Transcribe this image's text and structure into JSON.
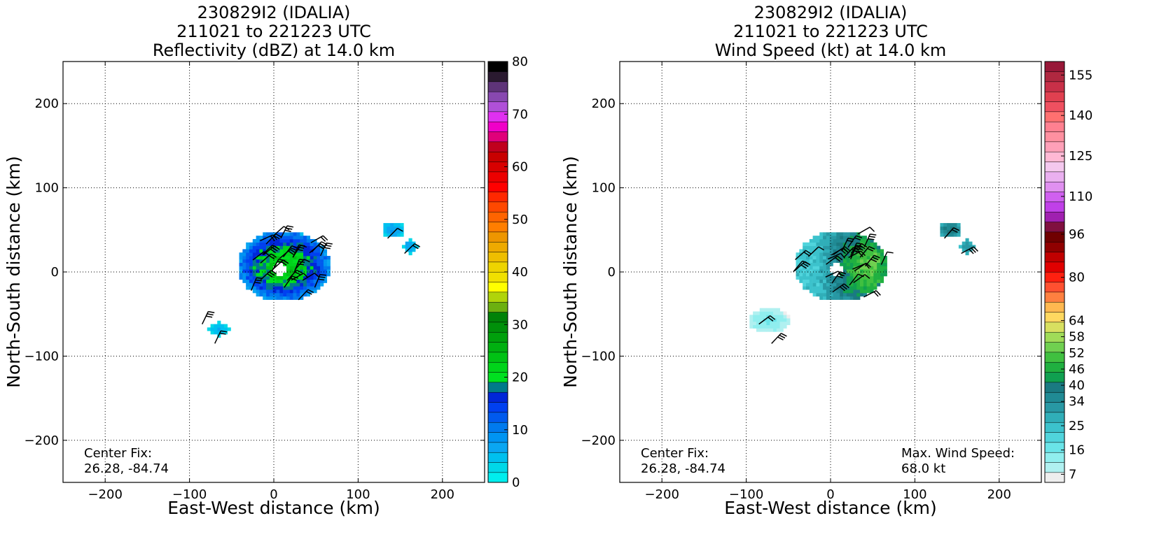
{
  "chart_data": [
    {
      "type": "heatmap",
      "title_lines": [
        "230829I2 (IDALIA)",
        "211021 to 221223 UTC",
        "Reflectivity (dBZ) at 14.0 km"
      ],
      "xlabel": "East-West distance (km)",
      "ylabel": "North-South distance (km)",
      "xlim": [
        -250,
        250
      ],
      "ylim": [
        -250,
        250
      ],
      "xticks": [
        -200,
        -100,
        0,
        100,
        200
      ],
      "yticks": [
        -200,
        -100,
        0,
        100,
        200
      ],
      "xtick_labels": [
        "−200",
        "−100",
        "0",
        "100",
        "200"
      ],
      "ytick_labels": [
        "−200",
        "−100",
        "0",
        "100",
        "200"
      ],
      "grid": true,
      "annotations": [
        {
          "lines": [
            "Center Fix:",
            "26.28, -84.74"
          ],
          "position": "bottom-left"
        }
      ],
      "colorbar": {
        "range": [
          0,
          80
        ],
        "ticks": [
          0,
          10,
          20,
          30,
          40,
          50,
          60,
          70,
          80
        ],
        "colors": [
          "#00eeee",
          "#00d8e8",
          "#00c0ef",
          "#0aa6f2",
          "#0094f2",
          "#007aee",
          "#005aee",
          "#0040f0",
          "#0026d8",
          "#007a8a",
          "#00e020",
          "#00d41a",
          "#00c214",
          "#00b010",
          "#00a00c",
          "#00900a",
          "#008208",
          "#6cb010",
          "#b0d40a",
          "#ffff00",
          "#f0e000",
          "#eed400",
          "#eebe00",
          "#eeaa00",
          "#ee9600",
          "#ff7e00",
          "#ff6400",
          "#ff4800",
          "#ff2800",
          "#ff0000",
          "#ec0000",
          "#d80000",
          "#c80000",
          "#c0001e",
          "#e0007a",
          "#f000c8",
          "#e030f0",
          "#b050d8",
          "#8848b0",
          "#5e3478",
          "#2a1a30",
          "#000000"
        ]
      },
      "data_note": "Reflectivity field (dBZ) mapped over storm-relative grid with wind barbs",
      "regions": [
        {
          "name": "core",
          "cx": 10,
          "cy": 5,
          "rx": 55,
          "ry": 42,
          "value_range": [
            5,
            25
          ]
        },
        {
          "name": "ne-fragment",
          "cx": 140,
          "cy": 48,
          "rx": 14,
          "ry": 10,
          "value_range": [
            2,
            8
          ]
        },
        {
          "name": "e-fragment",
          "cx": 160,
          "cy": 28,
          "rx": 8,
          "ry": 8,
          "value_range": [
            2,
            8
          ]
        },
        {
          "name": "sw-fragment",
          "cx": -67,
          "cy": -70,
          "rx": 12,
          "ry": 8,
          "value_range": [
            2,
            6
          ]
        }
      ]
    },
    {
      "type": "heatmap",
      "title_lines": [
        "230829I2 (IDALIA)",
        "211021 to 221223 UTC",
        "Wind Speed (kt) at 14.0 km"
      ],
      "xlabel": "East-West distance (km)",
      "ylabel": "North-South distance (km)",
      "xlim": [
        -250,
        250
      ],
      "ylim": [
        -250,
        250
      ],
      "xticks": [
        -200,
        -100,
        0,
        100,
        200
      ],
      "yticks": [
        -200,
        -100,
        0,
        100,
        200
      ],
      "xtick_labels": [
        "−200",
        "−100",
        "0",
        "100",
        "200"
      ],
      "ytick_labels": [
        "−200",
        "−100",
        "0",
        "100",
        "200"
      ],
      "grid": true,
      "annotations": [
        {
          "lines": [
            "Center Fix:",
            "26.28, -84.74"
          ],
          "position": "bottom-left"
        },
        {
          "lines": [
            "Max. Wind Speed:",
            "68.0 kt"
          ],
          "position": "bottom-right"
        }
      ],
      "colorbar": {
        "range": [
          4,
          160
        ],
        "ticks": [
          7,
          16,
          25,
          34,
          40,
          46,
          52,
          58,
          64,
          80,
          96,
          110,
          125,
          140,
          155
        ],
        "colors": [
          "#eeeeee",
          "#b0f0f0",
          "#90eeee",
          "#6ae4e8",
          "#50d4dc",
          "#3cc2cc",
          "#30aeb8",
          "#2898a4",
          "#208a94",
          "#1a7a82",
          "#10a050",
          "#20b040",
          "#40c040",
          "#70d050",
          "#a0dc58",
          "#d8e060",
          "#ffd860",
          "#ffb850",
          "#ff8040",
          "#ff5030",
          "#ff2010",
          "#e00000",
          "#c00000",
          "#900000",
          "#700000",
          "#801040",
          "#a020b0",
          "#c040e8",
          "#d060f0",
          "#e090f0",
          "#eab0f0",
          "#f4c8ee",
          "#ffb8d4",
          "#ffa0b8",
          "#ff90a0",
          "#ff8090",
          "#ff7070",
          "#ef5060",
          "#e04050",
          "#c83048",
          "#b02840",
          "#981838"
        ]
      },
      "data_note": "Wind speed field (kt) mapped over storm-relative grid with wind barbs",
      "regions": [
        {
          "name": "core",
          "cx": 10,
          "cy": 5,
          "rx": 55,
          "ry": 42,
          "value_range": [
            16,
            68
          ]
        },
        {
          "name": "ne-fragment",
          "cx": 140,
          "cy": 48,
          "rx": 14,
          "ry": 10,
          "value_range": [
            25,
            40
          ]
        },
        {
          "name": "e-fragment",
          "cx": 160,
          "cy": 28,
          "rx": 8,
          "ry": 8,
          "value_range": [
            25,
            34
          ]
        },
        {
          "name": "sw-fragment",
          "cx": -75,
          "cy": -60,
          "rx": 25,
          "ry": 15,
          "value_range": [
            7,
            16
          ]
        }
      ]
    }
  ]
}
